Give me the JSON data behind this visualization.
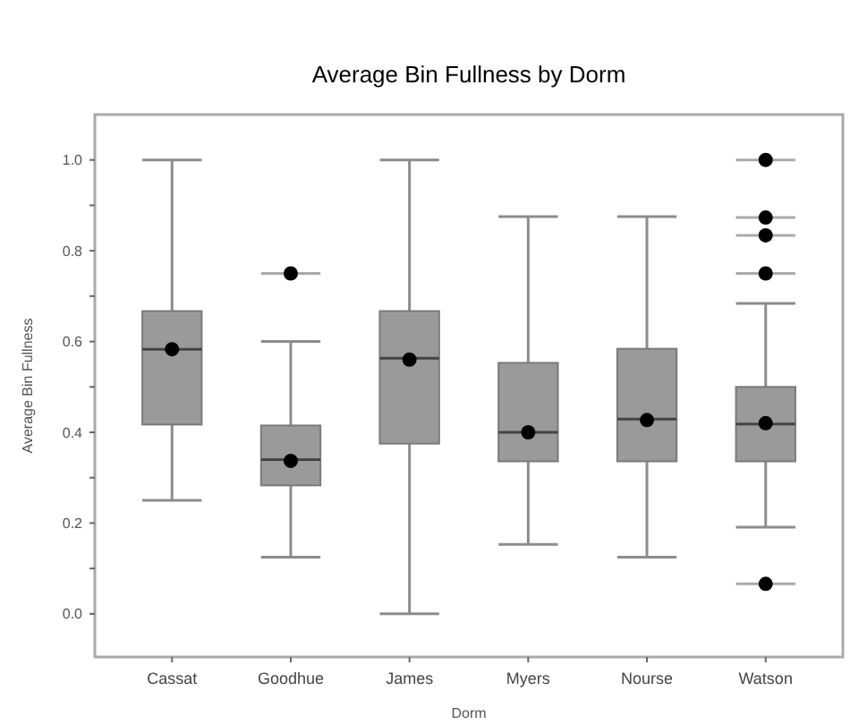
{
  "chart_data": {
    "type": "box",
    "title": "Average Bin Fullness by Dorm",
    "xlabel": "Dorm",
    "ylabel": "Average Bin Fullness",
    "categories": [
      "Cassat",
      "Goodhue",
      "James",
      "Myers",
      "Nourse",
      "Watson"
    ],
    "color": "#9a9a9a",
    "boxes": [
      {
        "low": 0.25,
        "q1": 0.417,
        "median": 0.583,
        "q3": 0.667,
        "high": 1.0,
        "mean": 0.583
      },
      {
        "low": 0.125,
        "q1": 0.283,
        "median": 0.34,
        "q3": 0.415,
        "high": 0.6,
        "mean": 0.337,
        "outliers": [
          0.75
        ]
      },
      {
        "low": 0.0,
        "q1": 0.375,
        "median": 0.563,
        "q3": 0.667,
        "high": 1.0,
        "mean": 0.56
      },
      {
        "low": 0.153,
        "q1": 0.336,
        "median": 0.4,
        "q3": 0.553,
        "high": 0.875,
        "mean": 0.4
      },
      {
        "low": 0.125,
        "q1": 0.336,
        "median": 0.429,
        "q3": 0.584,
        "high": 0.875,
        "mean": 0.427
      },
      {
        "low": 0.191,
        "q1": 0.336,
        "median": 0.418,
        "q3": 0.5,
        "high": 0.684,
        "mean": 0.42,
        "outliers": [
          1.0,
          0.873,
          0.834,
          0.75,
          0.066
        ]
      }
    ],
    "ylim": [
      -0.095,
      1.1
    ],
    "yticks": [
      {
        "value": 0,
        "label": "0.0"
      },
      {
        "value": 0.1,
        "label": null
      },
      {
        "value": 0.2,
        "label": "0.2"
      },
      {
        "value": 0.3,
        "label": null
      },
      {
        "value": 0.4,
        "label": "0.4"
      },
      {
        "value": 0.5,
        "label": null
      },
      {
        "value": 0.6,
        "label": "0.6"
      },
      {
        "value": 0.7,
        "label": null
      },
      {
        "value": 0.8,
        "label": "0.8"
      },
      {
        "value": 0.9,
        "label": null
      },
      {
        "value": 1.0,
        "label": "1.0"
      }
    ],
    "grid": false
  }
}
